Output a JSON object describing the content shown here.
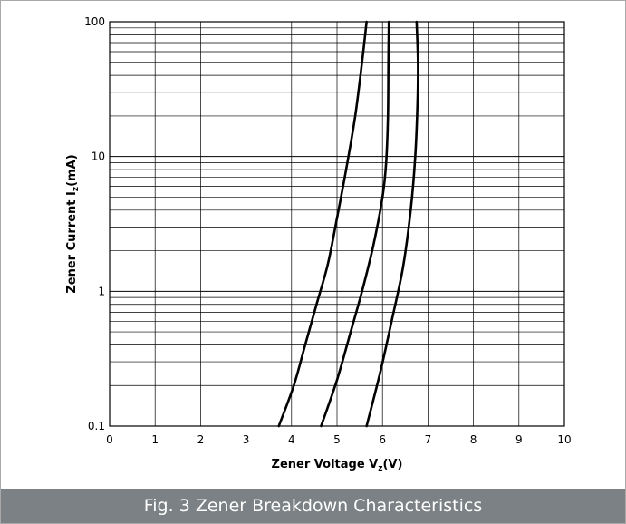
{
  "caption": "Fig. 3 Zener Breakdown Characteristics",
  "chart_data": {
    "type": "line",
    "title": "",
    "xlabel": "Zener Voltage  V",
    "xlabel_sub": "z",
    "xlabel_unit": "(V)",
    "ylabel": "Zener Current  I",
    "ylabel_sub": "z",
    "ylabel_unit": "(mA)",
    "xlim": [
      0,
      10
    ],
    "ylim": [
      0.1,
      100
    ],
    "yscale": "log",
    "grid": true,
    "x_ticks": [
      "0",
      "1",
      "2",
      "3",
      "4",
      "5",
      "6",
      "7",
      "8",
      "9",
      "10"
    ],
    "y_ticks": [
      {
        "value": 0.1,
        "label": "0.1"
      },
      {
        "value": 1,
        "label": "1"
      },
      {
        "value": 10,
        "label": "10"
      },
      {
        "value": 100,
        "label": "100"
      }
    ],
    "series": [
      {
        "points": [
          [
            3.72,
            0.1
          ],
          [
            4.05,
            0.2
          ],
          [
            4.3,
            0.4
          ],
          [
            4.55,
            0.8
          ],
          [
            4.8,
            1.6
          ],
          [
            5.0,
            3.5
          ],
          [
            5.2,
            8
          ],
          [
            5.4,
            20
          ],
          [
            5.55,
            50
          ],
          [
            5.65,
            100
          ]
        ]
      },
      {
        "points": [
          [
            4.65,
            0.1
          ],
          [
            5.0,
            0.22
          ],
          [
            5.3,
            0.5
          ],
          [
            5.55,
            1.0
          ],
          [
            5.8,
            2.2
          ],
          [
            6.0,
            5
          ],
          [
            6.08,
            9
          ],
          [
            6.12,
            20
          ],
          [
            6.13,
            50
          ],
          [
            6.14,
            100
          ]
        ]
      },
      {
        "points": [
          [
            5.65,
            0.1
          ],
          [
            5.95,
            0.25
          ],
          [
            6.2,
            0.6
          ],
          [
            6.45,
            1.5
          ],
          [
            6.62,
            4
          ],
          [
            6.72,
            10
          ],
          [
            6.77,
            25
          ],
          [
            6.78,
            50
          ],
          [
            6.75,
            100
          ]
        ]
      }
    ]
  }
}
